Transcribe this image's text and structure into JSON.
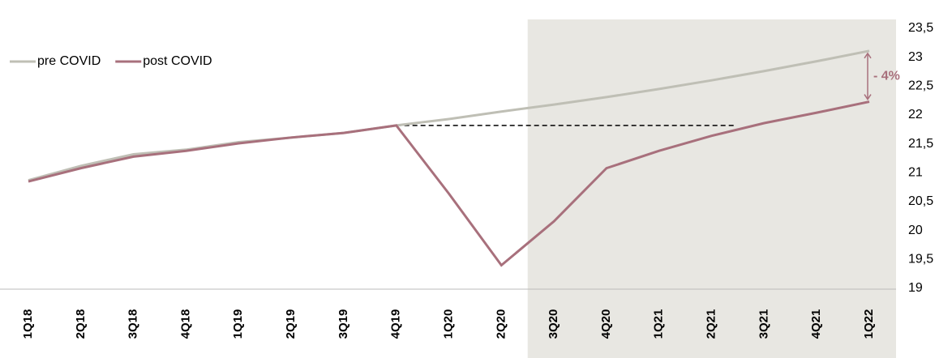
{
  "chart_data": {
    "type": "line",
    "categories": [
      "1Q18",
      "2Q18",
      "3Q18",
      "4Q18",
      "1Q19",
      "2Q19",
      "3Q19",
      "4Q19",
      "1Q20",
      "2Q20",
      "3Q20",
      "4Q20",
      "1Q21",
      "2Q21",
      "3Q21",
      "4Q21",
      "1Q22"
    ],
    "series": [
      {
        "name": "pre COVID",
        "color": "#bfbfb5",
        "values": [
          20.87,
          21.12,
          21.32,
          21.4,
          21.53,
          21.61,
          21.69,
          21.82,
          21.93,
          22.06,
          22.18,
          22.31,
          22.45,
          22.6,
          22.76,
          22.93,
          23.11
        ]
      },
      {
        "name": "post COVID",
        "color": "#a8707c",
        "values": [
          20.85,
          21.08,
          21.28,
          21.38,
          21.51,
          21.61,
          21.69,
          21.82,
          20.64,
          19.4,
          20.16,
          21.08,
          21.38,
          21.64,
          21.86,
          22.04,
          22.23
        ]
      }
    ],
    "ylim": [
      19,
      23.5
    ],
    "yticks": [
      19,
      {
        "value": 19.5,
        "label": "19,5"
      },
      20,
      {
        "value": 20.5,
        "label": "20,5"
      },
      21,
      {
        "value": 21.5,
        "label": "21,5"
      },
      22,
      {
        "value": 22.5,
        "label": "22,5"
      },
      23,
      {
        "value": 23.5,
        "label": "23,5"
      }
    ],
    "annotation": "- 4%",
    "legend": "top-left"
  }
}
